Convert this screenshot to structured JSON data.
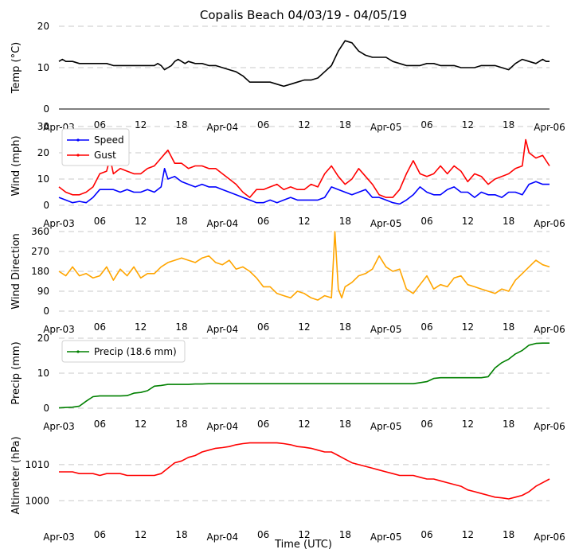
{
  "chart_data": [
    {
      "type": "line",
      "id": "temp",
      "title": "Copalis Beach 04/03/19 - 04/05/19",
      "ylabel": "Temp ($^\\circ$C)",
      "ylabel_display": "Temp (°C)",
      "ylim": [
        0,
        20
      ],
      "yticks": [
        0,
        10,
        20
      ],
      "series": [
        {
          "name": "Temp",
          "color": "#000000",
          "x": [
            0,
            0.5,
            1,
            2,
            3,
            4,
            5,
            6,
            7,
            8,
            9,
            10,
            11,
            12,
            13,
            14,
            14.5,
            15,
            15.5,
            16,
            16.5,
            17,
            17.5,
            18,
            18.5,
            19,
            20,
            21,
            22,
            23,
            24,
            25,
            26,
            27,
            28,
            29,
            30,
            31,
            32,
            33,
            34,
            35,
            36,
            37,
            38,
            39,
            40,
            41,
            42,
            43,
            44,
            45,
            46,
            47,
            48,
            49,
            50,
            51,
            52,
            53,
            54,
            55,
            56,
            57,
            58,
            59,
            60,
            61,
            62,
            63,
            64,
            65,
            66,
            67,
            68,
            69,
            70,
            71,
            71.5,
            72
          ],
          "y": [
            11.5,
            12,
            11.5,
            11.5,
            11,
            11,
            11,
            11,
            11,
            10.5,
            10.5,
            10.5,
            10.5,
            10.5,
            10.5,
            10.5,
            11,
            10.5,
            9.5,
            10,
            10.5,
            11.5,
            12,
            11.5,
            11,
            11.5,
            11,
            11,
            10.5,
            10.5,
            10,
            9.5,
            9,
            8,
            6.5,
            6.5,
            6.5,
            6.5,
            6,
            5.5,
            6,
            6.5,
            7,
            7,
            7.5,
            9,
            10.5,
            14,
            16.5,
            16,
            14,
            13,
            12.5,
            12.5,
            12.5,
            11.5,
            11,
            10.5,
            10.5,
            10.5,
            11,
            11,
            10.5,
            10.5,
            10.5,
            10,
            10,
            10,
            10.5,
            10.5,
            10.5,
            10,
            9.5,
            11,
            12,
            11.5,
            11,
            12,
            11.5,
            11.5
          ]
        }
      ]
    },
    {
      "type": "line",
      "id": "wind",
      "ylabel": "Wind (mph)",
      "ylim": [
        0,
        30
      ],
      "yticks": [
        0,
        10,
        20,
        30
      ],
      "legend": "top-left",
      "series": [
        {
          "name": "Speed",
          "color": "#0000ff",
          "x": [
            0,
            1,
            2,
            3,
            4,
            5,
            6,
            7,
            8,
            9,
            10,
            11,
            12,
            13,
            14,
            15,
            15.5,
            16,
            17,
            18,
            19,
            20,
            21,
            22,
            23,
            24,
            25,
            26,
            27,
            28,
            29,
            30,
            31,
            32,
            33,
            34,
            35,
            36,
            37,
            38,
            39,
            40,
            41,
            42,
            43,
            44,
            45,
            46,
            47,
            48,
            49,
            50,
            51,
            52,
            53,
            54,
            55,
            56,
            57,
            58,
            59,
            60,
            61,
            62,
            63,
            64,
            65,
            66,
            67,
            68,
            69,
            70,
            71,
            72
          ],
          "y": [
            3,
            2,
            1,
            1.5,
            1,
            3,
            6,
            6,
            6,
            5,
            6,
            5,
            5,
            6,
            5,
            7,
            14,
            10,
            11,
            9,
            8,
            7,
            8,
            7,
            7,
            6,
            5,
            4,
            3,
            2,
            1,
            1,
            2,
            1,
            2,
            3,
            2,
            2,
            2,
            2,
            3,
            7,
            6,
            5,
            4,
            5,
            6,
            3,
            3,
            2,
            1,
            0.5,
            2,
            4,
            7,
            5,
            4,
            4,
            6,
            7,
            5,
            5,
            3,
            5,
            4,
            4,
            3,
            5,
            5,
            4,
            8,
            9,
            8,
            8
          ]
        },
        {
          "name": "Gust",
          "color": "#ff0000",
          "x": [
            0,
            1,
            2,
            3,
            4,
            5,
            6,
            7,
            7.5,
            8,
            9,
            10,
            11,
            12,
            13,
            14,
            15,
            16,
            17,
            18,
            19,
            20,
            21,
            22,
            23,
            24,
            25,
            26,
            27,
            28,
            29,
            30,
            31,
            32,
            33,
            34,
            35,
            36,
            37,
            38,
            39,
            40,
            41,
            42,
            43,
            44,
            45,
            46,
            47,
            48,
            49,
            50,
            51,
            52,
            53,
            54,
            55,
            56,
            57,
            58,
            59,
            60,
            61,
            62,
            63,
            64,
            65,
            66,
            67,
            68,
            68.5,
            69,
            70,
            71,
            72
          ],
          "y": [
            7,
            5,
            4,
            4,
            5,
            7,
            12,
            13,
            18,
            12,
            14,
            13,
            12,
            12,
            14,
            15,
            18,
            21,
            16,
            16,
            14,
            15,
            15,
            14,
            14,
            12,
            10,
            8,
            5,
            3,
            6,
            6,
            7,
            8,
            6,
            7,
            6,
            6,
            8,
            7,
            12,
            15,
            11,
            8,
            10,
            14,
            11,
            8,
            4,
            3,
            3,
            6,
            12,
            17,
            12,
            11,
            12,
            15,
            12,
            15,
            13,
            9,
            12,
            11,
            8,
            10,
            11,
            12,
            14,
            15,
            25,
            20,
            18,
            19,
            15
          ]
        }
      ]
    },
    {
      "type": "line",
      "id": "wind-direction",
      "ylabel": "Wind Direction",
      "ylim": [
        0,
        360
      ],
      "yticks": [
        0,
        90,
        180,
        270,
        360
      ],
      "series": [
        {
          "name": "Direction",
          "color": "#ffa500",
          "x": [
            0,
            1,
            2,
            3,
            4,
            5,
            6,
            7,
            8,
            9,
            10,
            11,
            12,
            13,
            14,
            15,
            16,
            17,
            18,
            19,
            20,
            21,
            22,
            23,
            24,
            25,
            26,
            27,
            28,
            29,
            30,
            31,
            32,
            33,
            34,
            35,
            36,
            37,
            38,
            39,
            40,
            40.5,
            41,
            41.5,
            42,
            43,
            44,
            45,
            46,
            47,
            48,
            49,
            50,
            51,
            52,
            53,
            54,
            55,
            56,
            57,
            58,
            59,
            60,
            61,
            62,
            63,
            64,
            65,
            66,
            67,
            68,
            69,
            70,
            71,
            72
          ],
          "y": [
            180,
            160,
            200,
            160,
            170,
            150,
            160,
            200,
            140,
            190,
            160,
            200,
            150,
            170,
            170,
            200,
            220,
            230,
            240,
            230,
            220,
            240,
            250,
            220,
            210,
            230,
            190,
            200,
            180,
            150,
            110,
            110,
            80,
            70,
            60,
            90,
            80,
            60,
            50,
            70,
            60,
            360,
            100,
            60,
            110,
            130,
            160,
            170,
            190,
            250,
            200,
            180,
            190,
            100,
            80,
            120,
            160,
            100,
            120,
            110,
            150,
            160,
            120,
            110,
            100,
            90,
            80,
            100,
            90,
            140,
            170,
            200,
            230,
            210,
            200
          ]
        }
      ]
    },
    {
      "type": "line",
      "id": "precip",
      "ylabel": "Precip (mm)",
      "ylim": [
        0,
        20
      ],
      "yticks": [
        0,
        10,
        20
      ],
      "legend": "top-left",
      "series": [
        {
          "name": "Precip (18.6 mm)",
          "color": "#008000",
          "x": [
            0,
            1,
            2,
            3,
            4,
            5,
            6,
            7,
            8,
            9,
            10,
            11,
            12,
            13,
            14,
            15,
            16,
            17,
            18,
            19,
            20,
            21,
            22,
            23,
            24,
            25,
            26,
            27,
            28,
            29,
            30,
            31,
            32,
            33,
            34,
            35,
            36,
            37,
            38,
            39,
            40,
            41,
            42,
            43,
            44,
            45,
            46,
            47,
            48,
            49,
            50,
            51,
            52,
            53,
            54,
            55,
            56,
            57,
            58,
            59,
            60,
            61,
            62,
            63,
            64,
            65,
            66,
            67,
            68,
            69,
            70,
            71,
            72
          ],
          "y": [
            0.1,
            0.2,
            0.3,
            0.6,
            2,
            3.3,
            3.5,
            3.5,
            3.5,
            3.5,
            3.6,
            4.3,
            4.5,
            5,
            6.3,
            6.5,
            6.8,
            6.8,
            6.8,
            6.8,
            6.9,
            6.9,
            7,
            7,
            7,
            7,
            7,
            7,
            7,
            7,
            7,
            7,
            7,
            7,
            7,
            7,
            7,
            7,
            7,
            7,
            7,
            7,
            7,
            7,
            7,
            7,
            7,
            7,
            7,
            7,
            7,
            7,
            7,
            7.3,
            7.6,
            8.5,
            8.7,
            8.7,
            8.7,
            8.7,
            8.7,
            8.7,
            8.7,
            9,
            11.5,
            13,
            14,
            15.5,
            16.5,
            18,
            18.5,
            18.6,
            18.6
          ]
        }
      ]
    },
    {
      "type": "line",
      "id": "altimeter",
      "ylabel": "Altimeter (hPa)",
      "xlabel": "Time (UTC)",
      "ylim": [
        995,
        1019
      ],
      "yticks": [
        1000,
        1010
      ],
      "series": [
        {
          "name": "Altimeter",
          "color": "#ff0000",
          "x": [
            0,
            1,
            2,
            3,
            4,
            5,
            6,
            7,
            8,
            9,
            10,
            11,
            12,
            13,
            14,
            15,
            16,
            17,
            18,
            19,
            20,
            21,
            22,
            23,
            24,
            25,
            26,
            27,
            28,
            29,
            30,
            31,
            32,
            33,
            34,
            35,
            36,
            37,
            38,
            39,
            40,
            41,
            42,
            43,
            44,
            45,
            46,
            47,
            48,
            49,
            50,
            51,
            52,
            53,
            54,
            55,
            56,
            57,
            58,
            59,
            60,
            61,
            62,
            63,
            64,
            65,
            66,
            67,
            68,
            69,
            70,
            71,
            72
          ],
          "y": [
            1008,
            1008,
            1008,
            1007.5,
            1007.5,
            1007.5,
            1007,
            1007.5,
            1007.5,
            1007.5,
            1007,
            1007,
            1007,
            1007,
            1007,
            1007.5,
            1009,
            1010.5,
            1011,
            1012,
            1012.5,
            1013.5,
            1014,
            1014.5,
            1014.7,
            1015,
            1015.5,
            1015.8,
            1016,
            1016,
            1016,
            1016,
            1016,
            1015.8,
            1015.5,
            1015,
            1014.8,
            1014.5,
            1014,
            1013.5,
            1013.5,
            1012.5,
            1011.5,
            1010.5,
            1010,
            1009.5,
            1009,
            1008.5,
            1008,
            1007.5,
            1007,
            1007,
            1007,
            1006.5,
            1006,
            1006,
            1005.5,
            1005,
            1004.5,
            1004,
            1003,
            1002.5,
            1002,
            1001.5,
            1001,
            1000.8,
            1000.5,
            1001,
            1001.5,
            1002.5,
            1004,
            1005,
            1006
          ]
        }
      ]
    }
  ],
  "x_axis": {
    "range": [
      0,
      72
    ],
    "tick_positions": [
      0,
      6,
      12,
      18,
      24,
      30,
      36,
      42,
      48,
      54,
      60,
      66,
      72
    ],
    "tick_labels": [
      "Apr-03",
      "06",
      "12",
      "18",
      "Apr-04",
      "06",
      "12",
      "18",
      "Apr-05",
      "06",
      "12",
      "18",
      "Apr-06"
    ]
  }
}
